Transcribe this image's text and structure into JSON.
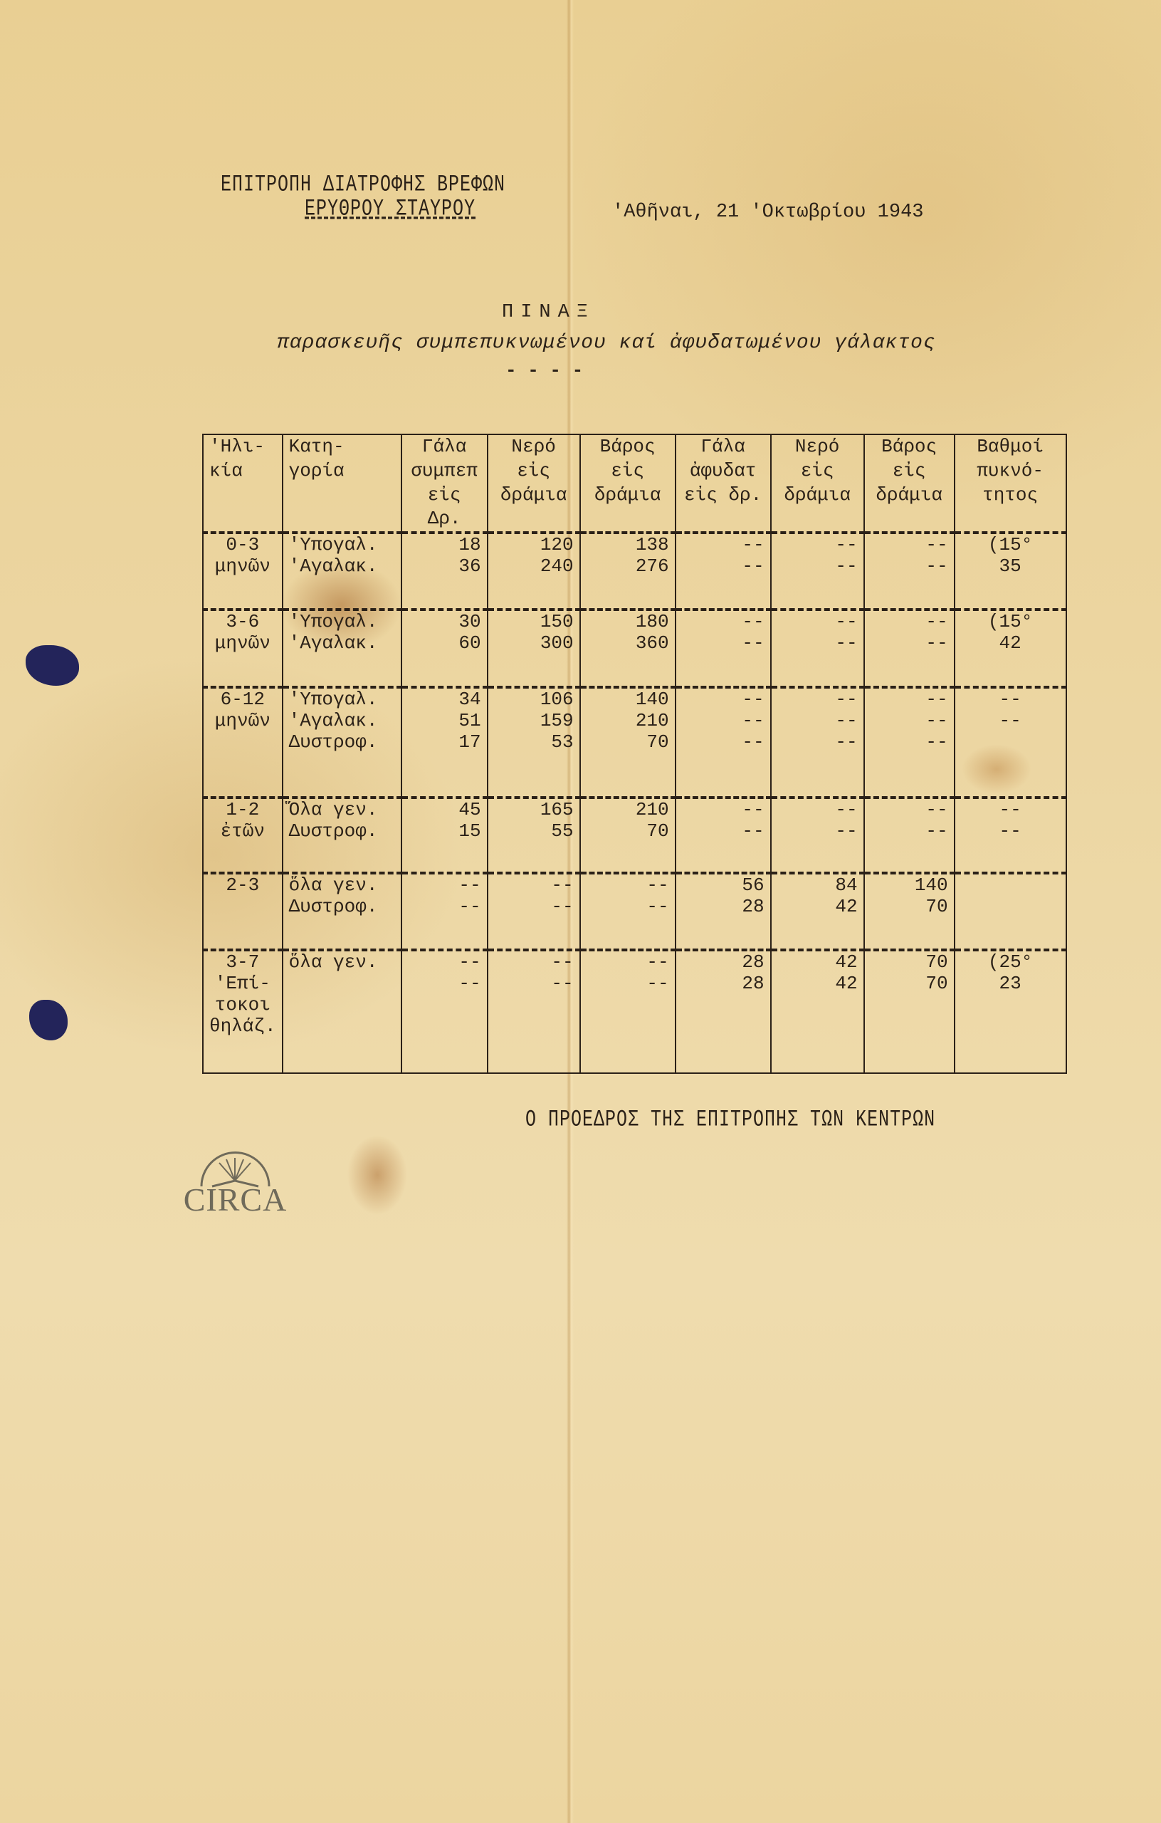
{
  "header": {
    "org_line1": "ΕΠΙΤΡΟΠΗ ΔΙΑΤΡΟΦΗΣ ΒΡΕΦΩΝ",
    "org_line2": "ΕΡΥΘΡΟΥ ΣΤΑΥΡΟΥ",
    "date": "'Αθῆναι, 21 'Οκτωβρίου 1943",
    "title": "ΠΙΝΑΞ",
    "subtitle": "παρασκευῆς συμπεπυκνωμένου καί ἀφυδατωμένου γάλακτος",
    "separator": "- - - -"
  },
  "table": {
    "headers": [
      [
        "'Ηλι-",
        "κία"
      ],
      [
        "Κατη-",
        "γορία"
      ],
      [
        "Γάλα",
        "συμπεπ",
        "εἰς Δρ."
      ],
      [
        "Νερό",
        "εἰς",
        "δράμια"
      ],
      [
        "Βάρος",
        "εἰς",
        "δράμια"
      ],
      [
        "Γάλα",
        "ἀφυδατ",
        "εἰς δρ."
      ],
      [
        "Νερό",
        "εἰς",
        "δράμια"
      ],
      [
        "Βάρος",
        "εἰς",
        "δράμια"
      ],
      [
        "Βαθμοί",
        "πυκνό-",
        "τητος"
      ]
    ],
    "groups": [
      {
        "age": [
          "0-3",
          "μηνῶν"
        ],
        "rows": [
          {
            "category": "'Υπογαλ.",
            "values": [
              "18",
              "120",
              "138",
              "--",
              "--",
              "--",
              "(15°"
            ]
          },
          {
            "category": "'Αγαλακ.",
            "values": [
              "36",
              "240",
              "276",
              "--",
              "--",
              "--",
              "35"
            ]
          }
        ]
      },
      {
        "age": [
          "3-6",
          "μηνῶν"
        ],
        "rows": [
          {
            "category": "'Υπογαλ.",
            "values": [
              "30",
              "150",
              "180",
              "--",
              "--",
              "--",
              "(15°"
            ]
          },
          {
            "category": "'Αγαλακ.",
            "values": [
              "60",
              "300",
              "360",
              "--",
              "--",
              "--",
              "42"
            ]
          }
        ]
      },
      {
        "age": [
          "6-12",
          "μηνῶν"
        ],
        "rows": [
          {
            "category": "'Υπογαλ.",
            "values": [
              "34",
              "106",
              "140",
              "--",
              "--",
              "--",
              "--"
            ]
          },
          {
            "category": "'Αγαλακ.",
            "values": [
              "51",
              "159",
              "210",
              "--",
              "--",
              "--",
              "--"
            ]
          },
          {
            "category": "Δυστροφ.",
            "values": [
              "17",
              "53",
              "70",
              "--",
              "--",
              "--",
              ""
            ]
          }
        ]
      },
      {
        "age": [
          "1-2",
          "ἐτῶν"
        ],
        "rows": [
          {
            "category": "Ὅλα γεν.",
            "values": [
              "45",
              "165",
              "210",
              "--",
              "--",
              "--",
              "--"
            ]
          },
          {
            "category": "Δυστροφ.",
            "values": [
              "15",
              "55",
              "70",
              "--",
              "--",
              "--",
              "--"
            ]
          }
        ]
      },
      {
        "age": [
          "2-3"
        ],
        "rows": [
          {
            "category": "ὅλα γεν.",
            "values": [
              "--",
              "--",
              "--",
              "56",
              "84",
              "140",
              ""
            ]
          },
          {
            "category": "Δυστροφ.",
            "values": [
              "--",
              "--",
              "--",
              "28",
              "42",
              "70",
              ""
            ]
          }
        ]
      },
      {
        "age": [
          "3-7",
          "'Επί-",
          "τοκοι",
          "θηλάζ."
        ],
        "rows": [
          {
            "category": "ὅλα γεν.",
            "values": [
              "--",
              "--",
              "--",
              "28",
              "42",
              "70",
              "(25°"
            ]
          },
          {
            "category": "",
            "values": [
              "--",
              "--",
              "--",
              "28",
              "42",
              "70",
              "23"
            ]
          }
        ]
      }
    ]
  },
  "footer": {
    "signature": "Ο ΠΡΟΕΔΡΟΣ ΤΗΣ ΕΠΙΤΡΟΠΗΣ ΤΩΝ ΚΕΝΤΡΩΝ"
  },
  "watermark": {
    "logo_text": "CIRCA",
    "icon": "open-book-icon"
  },
  "colors": {
    "paper": "#ecd5a0",
    "ink": "#2b2118",
    "hole": "#23245a"
  }
}
